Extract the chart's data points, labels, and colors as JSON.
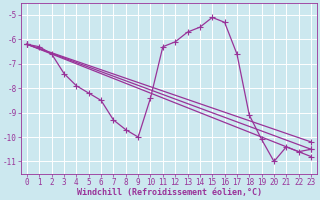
{
  "background_color": "#cce8ef",
  "grid_color": "#ffffff",
  "line_color": "#993399",
  "markersize": 2.5,
  "linewidth": 0.9,
  "xlim": [
    -0.5,
    23.5
  ],
  "ylim": [
    -11.5,
    -4.5
  ],
  "xlabel": "Windchill (Refroidissement éolien,°C)",
  "yticks": [
    -5,
    -6,
    -7,
    -8,
    -9,
    -10,
    -11
  ],
  "xticks": [
    0,
    1,
    2,
    3,
    4,
    5,
    6,
    7,
    8,
    9,
    10,
    11,
    12,
    13,
    14,
    15,
    16,
    17,
    18,
    19,
    20,
    21,
    22,
    23
  ],
  "tick_fontsize": 5.5,
  "xlabel_fontsize": 6.0,
  "series1": [
    [
      0,
      -6.2
    ],
    [
      1,
      -6.3
    ],
    [
      2,
      -6.6
    ],
    [
      3,
      -7.4
    ],
    [
      4,
      -7.9
    ],
    [
      5,
      -8.2
    ],
    [
      6,
      -8.5
    ],
    [
      7,
      -9.3
    ],
    [
      8,
      -9.7
    ],
    [
      9,
      -10.0
    ],
    [
      10,
      -8.4
    ],
    [
      11,
      -6.3
    ],
    [
      12,
      -6.1
    ],
    [
      13,
      -5.7
    ],
    [
      14,
      -5.5
    ],
    [
      15,
      -5.1
    ],
    [
      16,
      -5.3
    ],
    [
      17,
      -6.6
    ],
    [
      18,
      -9.1
    ],
    [
      19,
      -10.1
    ],
    [
      20,
      -11.0
    ],
    [
      21,
      -10.4
    ],
    [
      22,
      -10.6
    ],
    [
      23,
      -10.5
    ]
  ],
  "line2": [
    [
      0,
      -6.2
    ],
    [
      23,
      -10.2
    ]
  ],
  "line3": [
    [
      0,
      -6.2
    ],
    [
      23,
      -10.5
    ]
  ],
  "line4": [
    [
      0,
      -6.2
    ],
    [
      23,
      -10.8
    ]
  ]
}
